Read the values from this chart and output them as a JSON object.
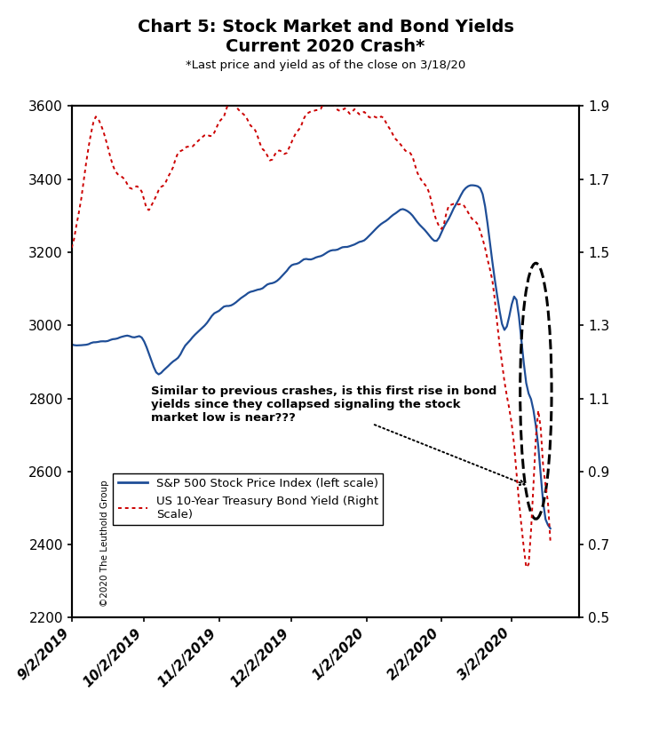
{
  "title_line1": "Chart 5: Stock Market and Bond Yields",
  "title_line2": "Current 2020 Crash*",
  "subtitle": "*Last price and yield as of the close on 3/18/20",
  "ylim_left": [
    2200,
    3600
  ],
  "ylim_right": [
    0.5,
    1.9
  ],
  "yticks_left": [
    2200,
    2400,
    2600,
    2800,
    3000,
    3200,
    3400,
    3600
  ],
  "yticks_right": [
    0.5,
    0.7,
    0.9,
    1.1,
    1.3,
    1.5,
    1.7,
    1.9
  ],
  "xtick_labels": [
    "9/2/2019",
    "10/2/2019",
    "11/2/2019",
    "12/2/2019",
    "1/2/2020",
    "2/2/2020",
    "3/2/2020"
  ],
  "sp500_color": "#1f4e97",
  "bond_color": "#cc0000",
  "annotation_text": "Similar to previous crashes, is this first rise in bond\nyields since they collapsed signaling the stock\nmarket low is near???",
  "legend_sp500": "S&P 500 Stock Price Index (left scale)",
  "legend_bond": "US 10-Year Treasury Bond Yield (Right\nScale)",
  "copyright_text": "©2020 The Leuthold Group",
  "background_color": "#ffffff"
}
